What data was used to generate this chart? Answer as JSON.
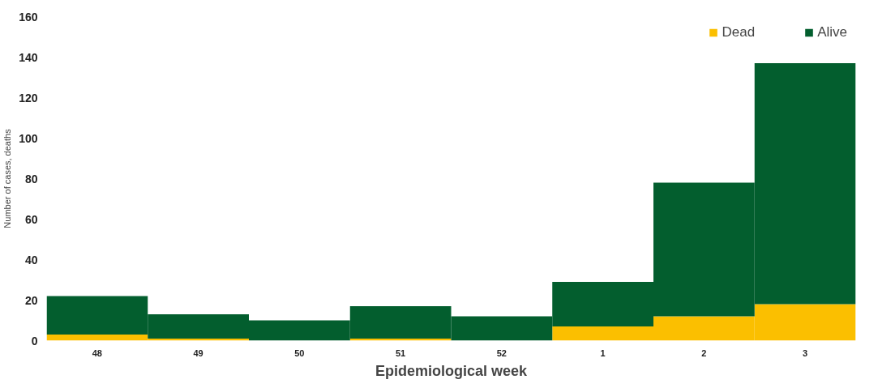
{
  "chart_data": {
    "type": "bar",
    "stacked": true,
    "xlabel": "Epidemiological week",
    "ylabel": "Number of cases, deaths",
    "categories": [
      "48",
      "49",
      "50",
      "51",
      "52",
      "1",
      "2",
      "3"
    ],
    "series": [
      {
        "name": "Dead",
        "color": "#fbbf00",
        "values": [
          3,
          1,
          0,
          1,
          0,
          7,
          12,
          18
        ]
      },
      {
        "name": "Alive",
        "color": "#035e2e",
        "values": [
          19,
          12,
          10,
          16,
          12,
          22,
          66,
          119
        ]
      }
    ],
    "ylim": [
      0,
      160
    ],
    "yticks": [
      0,
      20,
      40,
      60,
      80,
      100,
      120,
      140,
      160
    ],
    "grid": false,
    "legend": "top right"
  }
}
